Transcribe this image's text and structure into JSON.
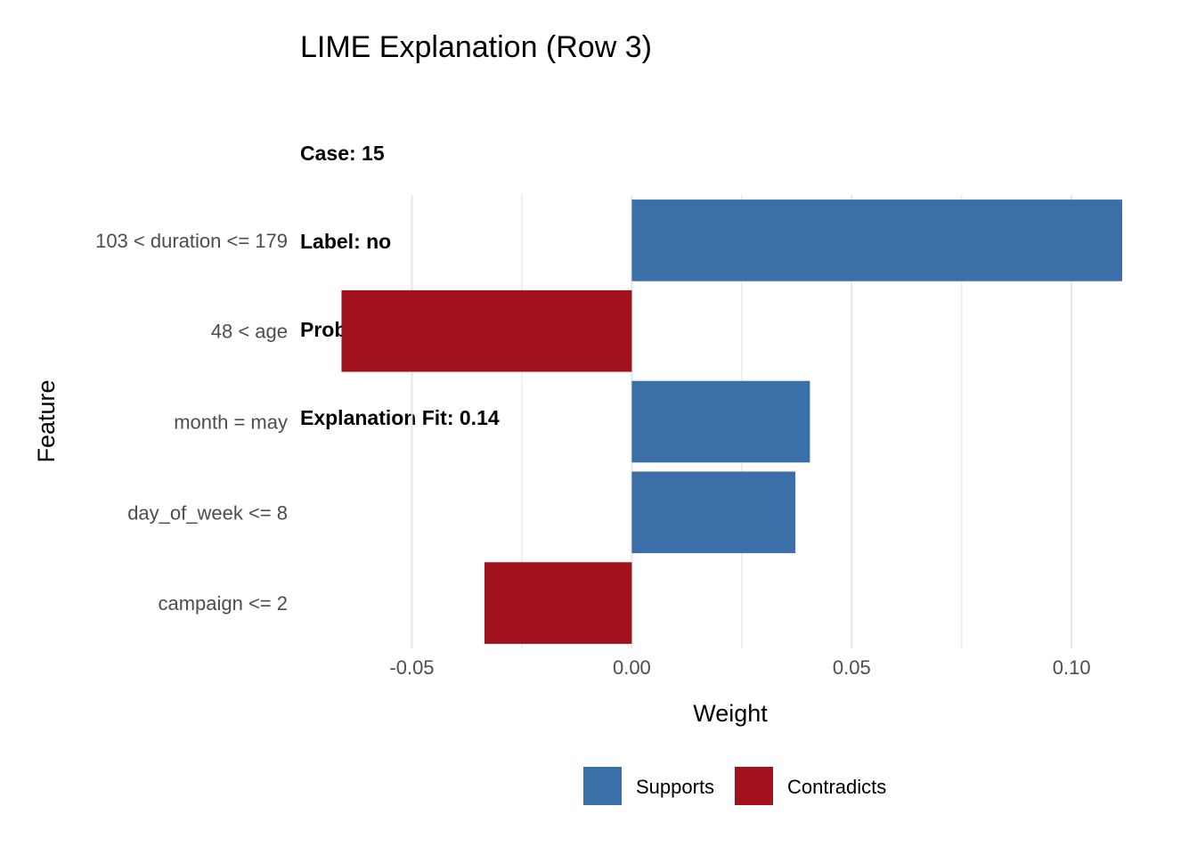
{
  "chart_data": {
    "type": "bar",
    "orientation": "horizontal",
    "title": "LIME Explanation (Row 3)",
    "subtitle_lines": [
      "Case: 15",
      "Label: no",
      "Probability: 1",
      "Explanation Fit: 0.14"
    ],
    "xlabel": "Weight",
    "ylabel": "Feature",
    "categories": [
      "103 < duration <= 179",
      "48 < age",
      "month = may",
      "day_of_week <= 8",
      "campaign <= 2"
    ],
    "values": [
      0.1115,
      -0.066,
      0.0405,
      0.0372,
      -0.0335
    ],
    "groups": [
      "Supports",
      "Contradicts",
      "Supports",
      "Supports",
      "Contradicts"
    ],
    "xlim": [
      -0.0665,
      0.1115
    ],
    "xticks": [
      -0.05,
      0.0,
      0.05,
      0.1
    ],
    "xtick_labels": [
      "-0.05",
      "0.00",
      "0.05",
      "0.10"
    ],
    "grid": true,
    "legend": {
      "position": "bottom",
      "entries": [
        {
          "label": "Supports",
          "color": "#3A6FA8"
        },
        {
          "label": "Contradicts",
          "color": "#A1121C"
        }
      ]
    }
  }
}
